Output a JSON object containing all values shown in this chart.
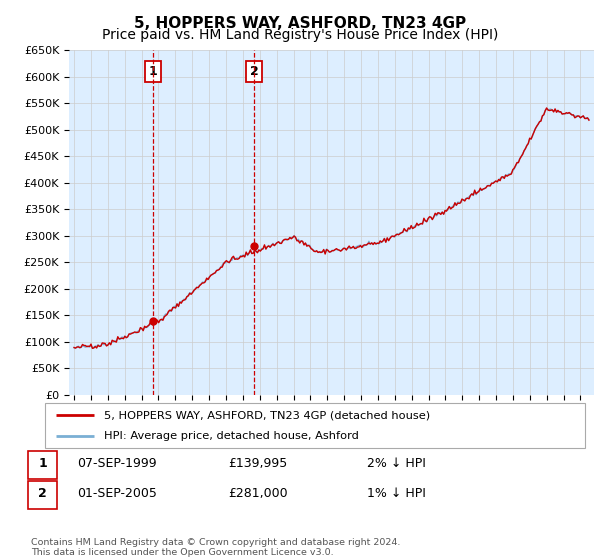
{
  "title": "5, HOPPERS WAY, ASHFORD, TN23 4GP",
  "subtitle": "Price paid vs. HM Land Registry's House Price Index (HPI)",
  "ylim": [
    0,
    650000
  ],
  "yticks": [
    0,
    50000,
    100000,
    150000,
    200000,
    250000,
    300000,
    350000,
    400000,
    450000,
    500000,
    550000,
    600000,
    650000
  ],
  "ytick_labels": [
    "£0",
    "£50K",
    "£100K",
    "£150K",
    "£200K",
    "£250K",
    "£300K",
    "£350K",
    "£400K",
    "£450K",
    "£500K",
    "£550K",
    "£600K",
    "£650K"
  ],
  "xlim_start": 1994.7,
  "xlim_end": 2025.8,
  "sale1_year": 1999.69,
  "sale1_price": 139995,
  "sale1_label": "1",
  "sale1_date": "07-SEP-1999",
  "sale1_amount": "£139,995",
  "sale1_pct": "2% ↓ HPI",
  "sale2_year": 2005.67,
  "sale2_price": 281000,
  "sale2_label": "2",
  "sale2_date": "01-SEP-2005",
  "sale2_amount": "£281,000",
  "sale2_pct": "1% ↓ HPI",
  "line_color_price": "#cc0000",
  "line_color_hpi": "#7aafd4",
  "grid_color": "#cccccc",
  "plot_bg": "#ddeeff",
  "legend_label_price": "5, HOPPERS WAY, ASHFORD, TN23 4GP (detached house)",
  "legend_label_hpi": "HPI: Average price, detached house, Ashford",
  "footer": "Contains HM Land Registry data © Crown copyright and database right 2024.\nThis data is licensed under the Open Government Licence v3.0.",
  "title_fontsize": 11,
  "subtitle_fontsize": 10
}
